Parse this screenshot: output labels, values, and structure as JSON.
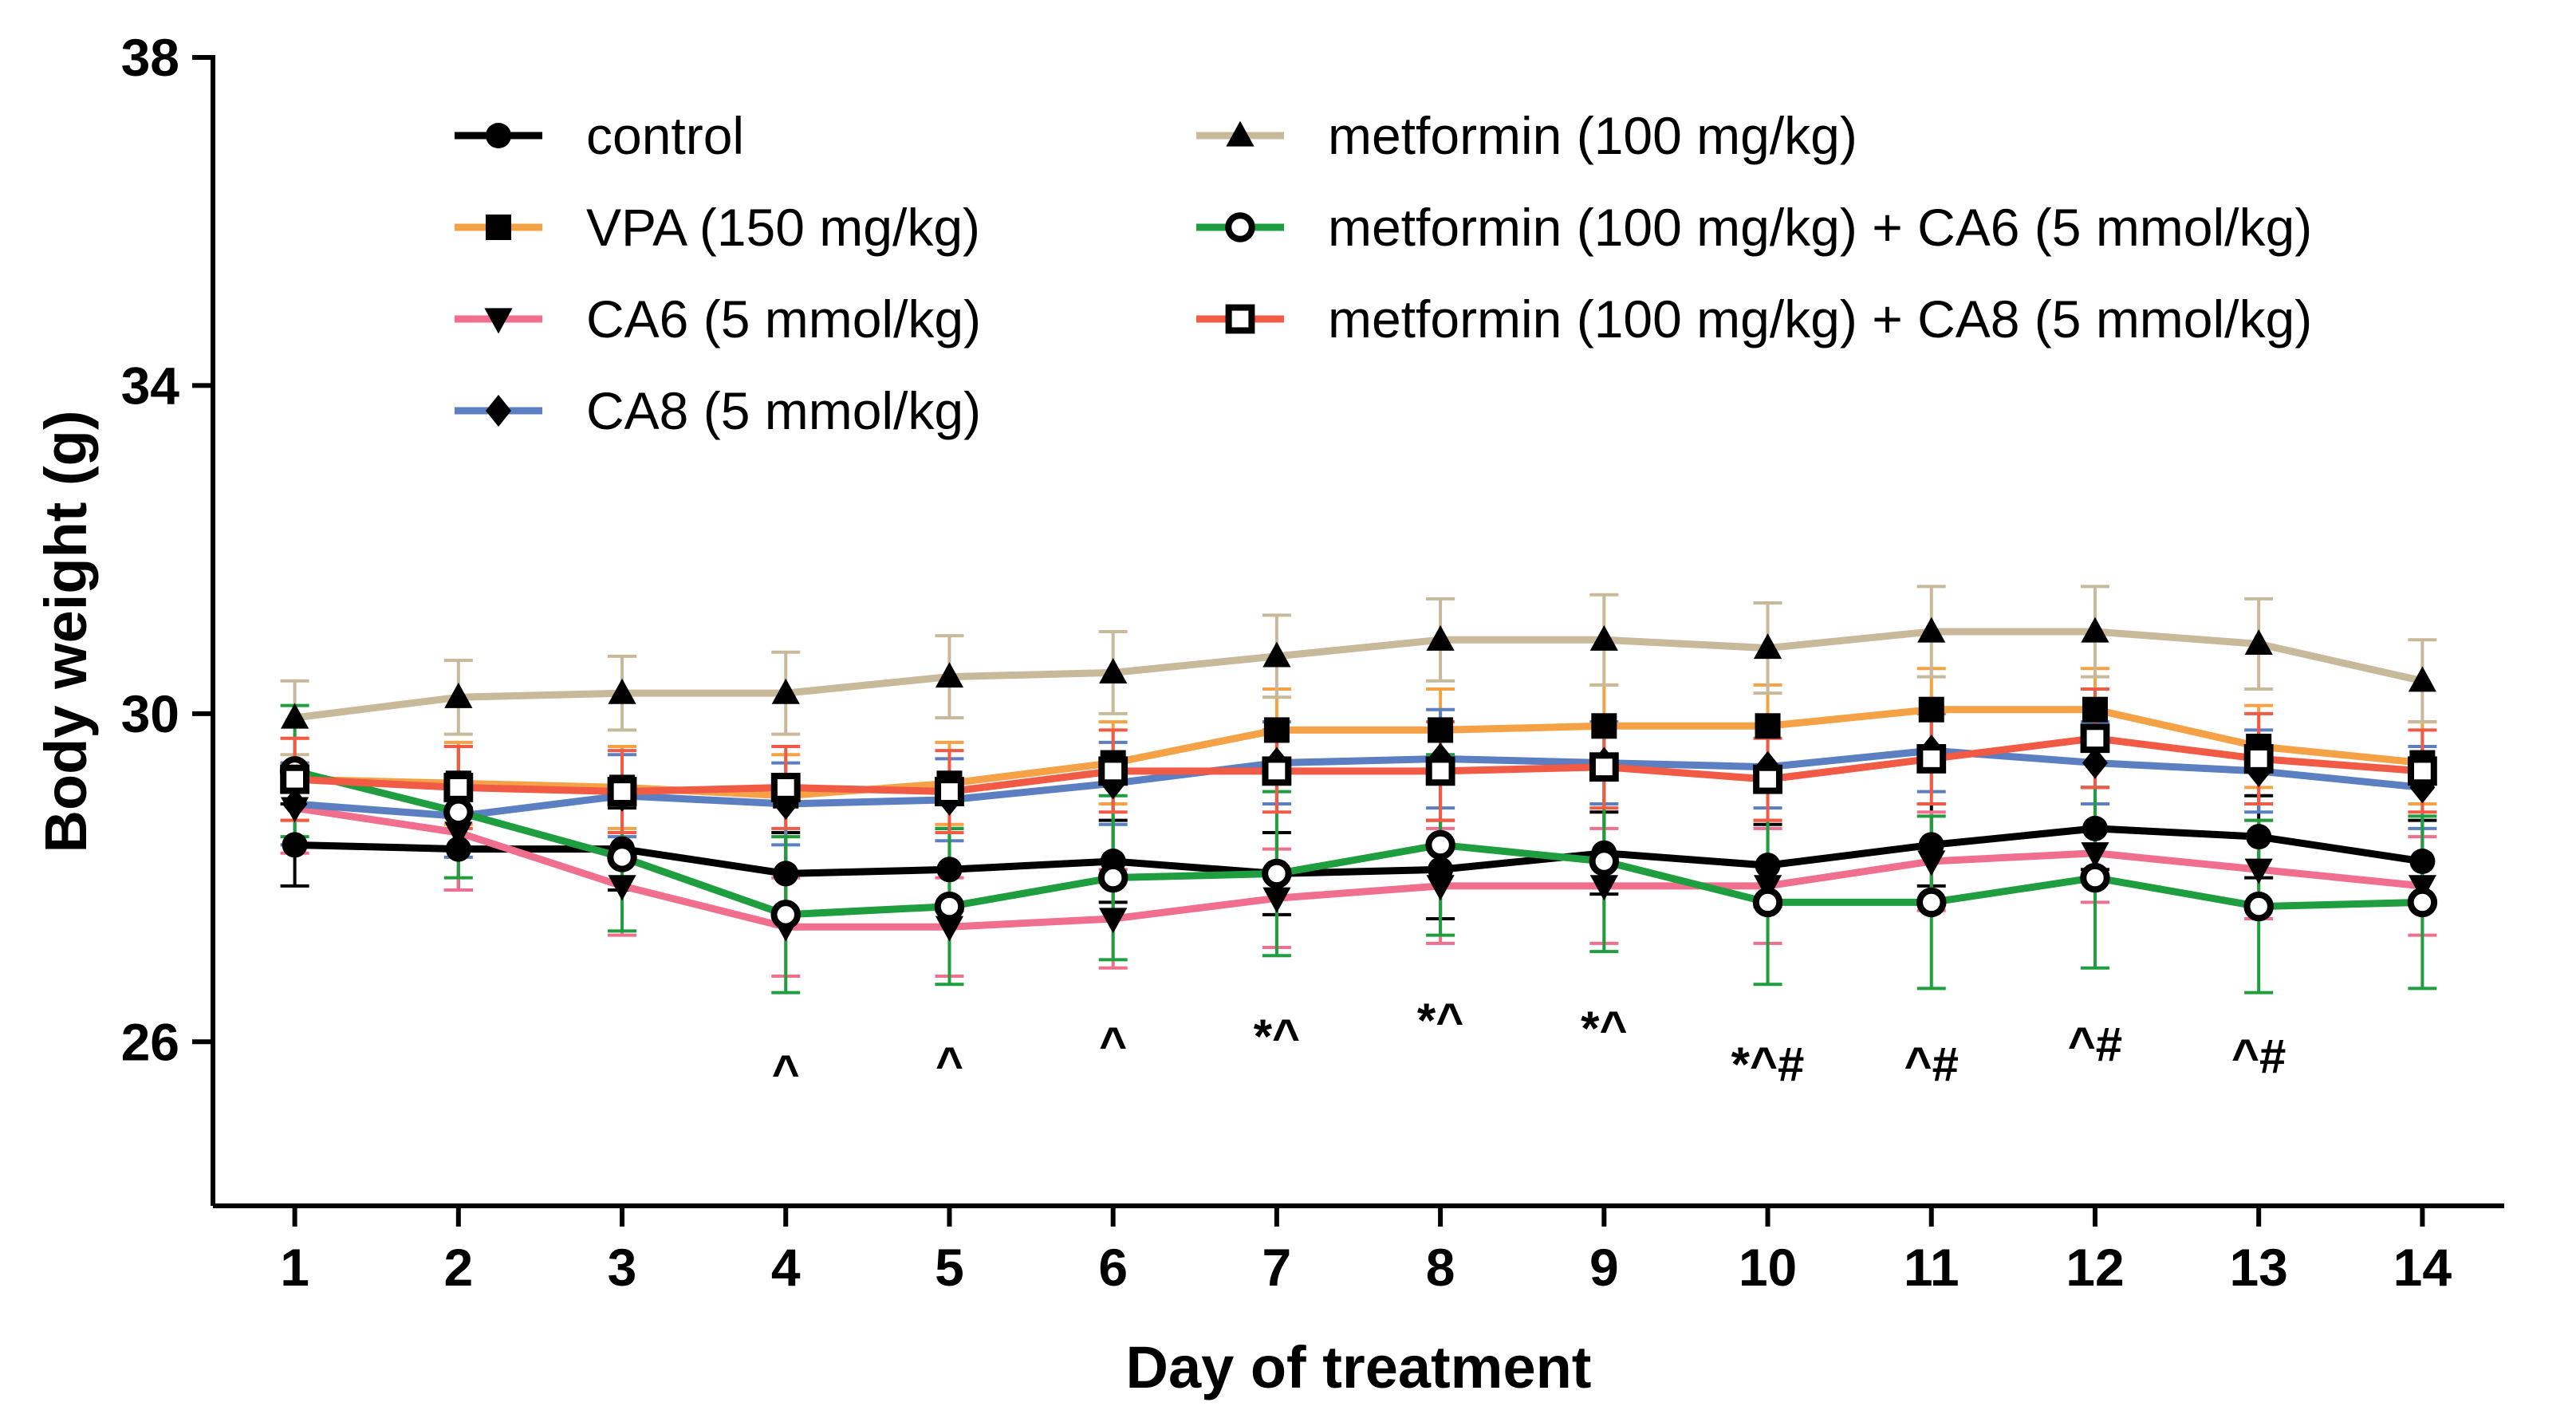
{
  "chart_data": {
    "type": "line",
    "title": "",
    "xlabel": "Day of treatment",
    "ylabel": "Body weight (g)",
    "x": [
      1,
      2,
      3,
      4,
      5,
      6,
      7,
      8,
      9,
      10,
      11,
      12,
      13,
      14
    ],
    "xlim": [
      0.5,
      14.5
    ],
    "ylim": [
      24,
      38
    ],
    "yticks": [
      26,
      30,
      34,
      38
    ],
    "grid": false,
    "legend_position": "top-left",
    "series": [
      {
        "name": "control",
        "color": "#000000",
        "marker": "circle-filled",
        "values": [
          28.4,
          28.35,
          28.35,
          28.05,
          28.1,
          28.2,
          28.05,
          28.1,
          28.3,
          28.15,
          28.4,
          28.6,
          28.5,
          28.2
        ],
        "errors": [
          0.5,
          0.5,
          0.5,
          0.5,
          0.5,
          0.5,
          0.5,
          0.6,
          0.5,
          0.5,
          0.5,
          0.5,
          0.5,
          0.5
        ]
      },
      {
        "name": "VPA (150 mg/kg)",
        "color": "#F5A145",
        "marker": "square-filled",
        "values": [
          29.2,
          29.15,
          29.1,
          29.0,
          29.15,
          29.4,
          29.8,
          29.8,
          29.85,
          29.85,
          30.05,
          30.05,
          29.6,
          29.4
        ],
        "errors": [
          0.5,
          0.5,
          0.5,
          0.5,
          0.5,
          0.5,
          0.5,
          0.5,
          0.5,
          0.5,
          0.5,
          0.5,
          0.5,
          0.5
        ]
      },
      {
        "name": "CA6 (5 mmol/kg)",
        "color": "#F06E8E",
        "marker": "triangle-down-filled",
        "values": [
          28.85,
          28.55,
          27.9,
          27.4,
          27.4,
          27.5,
          27.75,
          27.9,
          27.9,
          27.9,
          28.2,
          28.3,
          28.1,
          27.9
        ],
        "errors": [
          0.55,
          0.7,
          0.6,
          0.6,
          0.6,
          0.6,
          0.6,
          0.7,
          0.7,
          0.7,
          0.6,
          0.6,
          0.6,
          0.6
        ]
      },
      {
        "name": "CA8 (5 mmol/kg)",
        "color": "#5B7FC0",
        "marker": "diamond-filled",
        "values": [
          28.9,
          28.75,
          29.0,
          28.9,
          28.95,
          29.15,
          29.4,
          29.45,
          29.4,
          29.35,
          29.55,
          29.4,
          29.3,
          29.1
        ],
        "errors": [
          0.5,
          0.5,
          0.5,
          0.5,
          0.5,
          0.5,
          0.5,
          0.6,
          0.5,
          0.5,
          0.5,
          0.5,
          0.5,
          0.5
        ]
      },
      {
        "name": "metformin (100 mg/kg)",
        "color": "#C8B99A",
        "marker": "triangle-up-filled",
        "values": [
          29.95,
          30.2,
          30.25,
          30.25,
          30.45,
          30.5,
          30.7,
          30.9,
          30.9,
          30.8,
          31.0,
          31.0,
          30.85,
          30.4
        ],
        "errors": [
          0.45,
          0.45,
          0.45,
          0.5,
          0.5,
          0.5,
          0.5,
          0.5,
          0.55,
          0.55,
          0.55,
          0.55,
          0.55,
          0.5
        ]
      },
      {
        "name": "metformin (100 mg/kg) + CA6 (5 mmol/kg)",
        "color": "#1E9E3E",
        "marker": "circle-open",
        "values": [
          29.3,
          28.8,
          28.25,
          27.55,
          27.65,
          28.0,
          28.05,
          28.4,
          28.2,
          27.7,
          27.7,
          28.0,
          27.65,
          27.7
        ],
        "errors": [
          0.8,
          0.8,
          0.9,
          0.95,
          0.95,
          1.0,
          1.0,
          1.1,
          1.1,
          1.0,
          1.05,
          1.1,
          1.05,
          1.05
        ]
      },
      {
        "name": "metformin (100 mg/kg) + CA8 (5 mmol/kg)",
        "color": "#F15A45",
        "marker": "square-open",
        "values": [
          29.2,
          29.1,
          29.05,
          29.1,
          29.05,
          29.3,
          29.3,
          29.3,
          29.35,
          29.2,
          29.45,
          29.7,
          29.45,
          29.3
        ],
        "errors": [
          0.5,
          0.5,
          0.5,
          0.5,
          0.5,
          0.5,
          0.5,
          0.6,
          0.5,
          0.5,
          0.55,
          0.6,
          0.55,
          0.5
        ]
      }
    ],
    "annotations": [
      {
        "x": 4,
        "text": "^"
      },
      {
        "x": 5,
        "text": "^"
      },
      {
        "x": 6,
        "text": "^"
      },
      {
        "x": 7,
        "text": "*^"
      },
      {
        "x": 8,
        "text": "*^"
      },
      {
        "x": 9,
        "text": "*^"
      },
      {
        "x": 10,
        "text": "*^#"
      },
      {
        "x": 11,
        "text": "^#"
      },
      {
        "x": 12,
        "text": "^#"
      },
      {
        "x": 13,
        "text": "^#"
      }
    ]
  }
}
